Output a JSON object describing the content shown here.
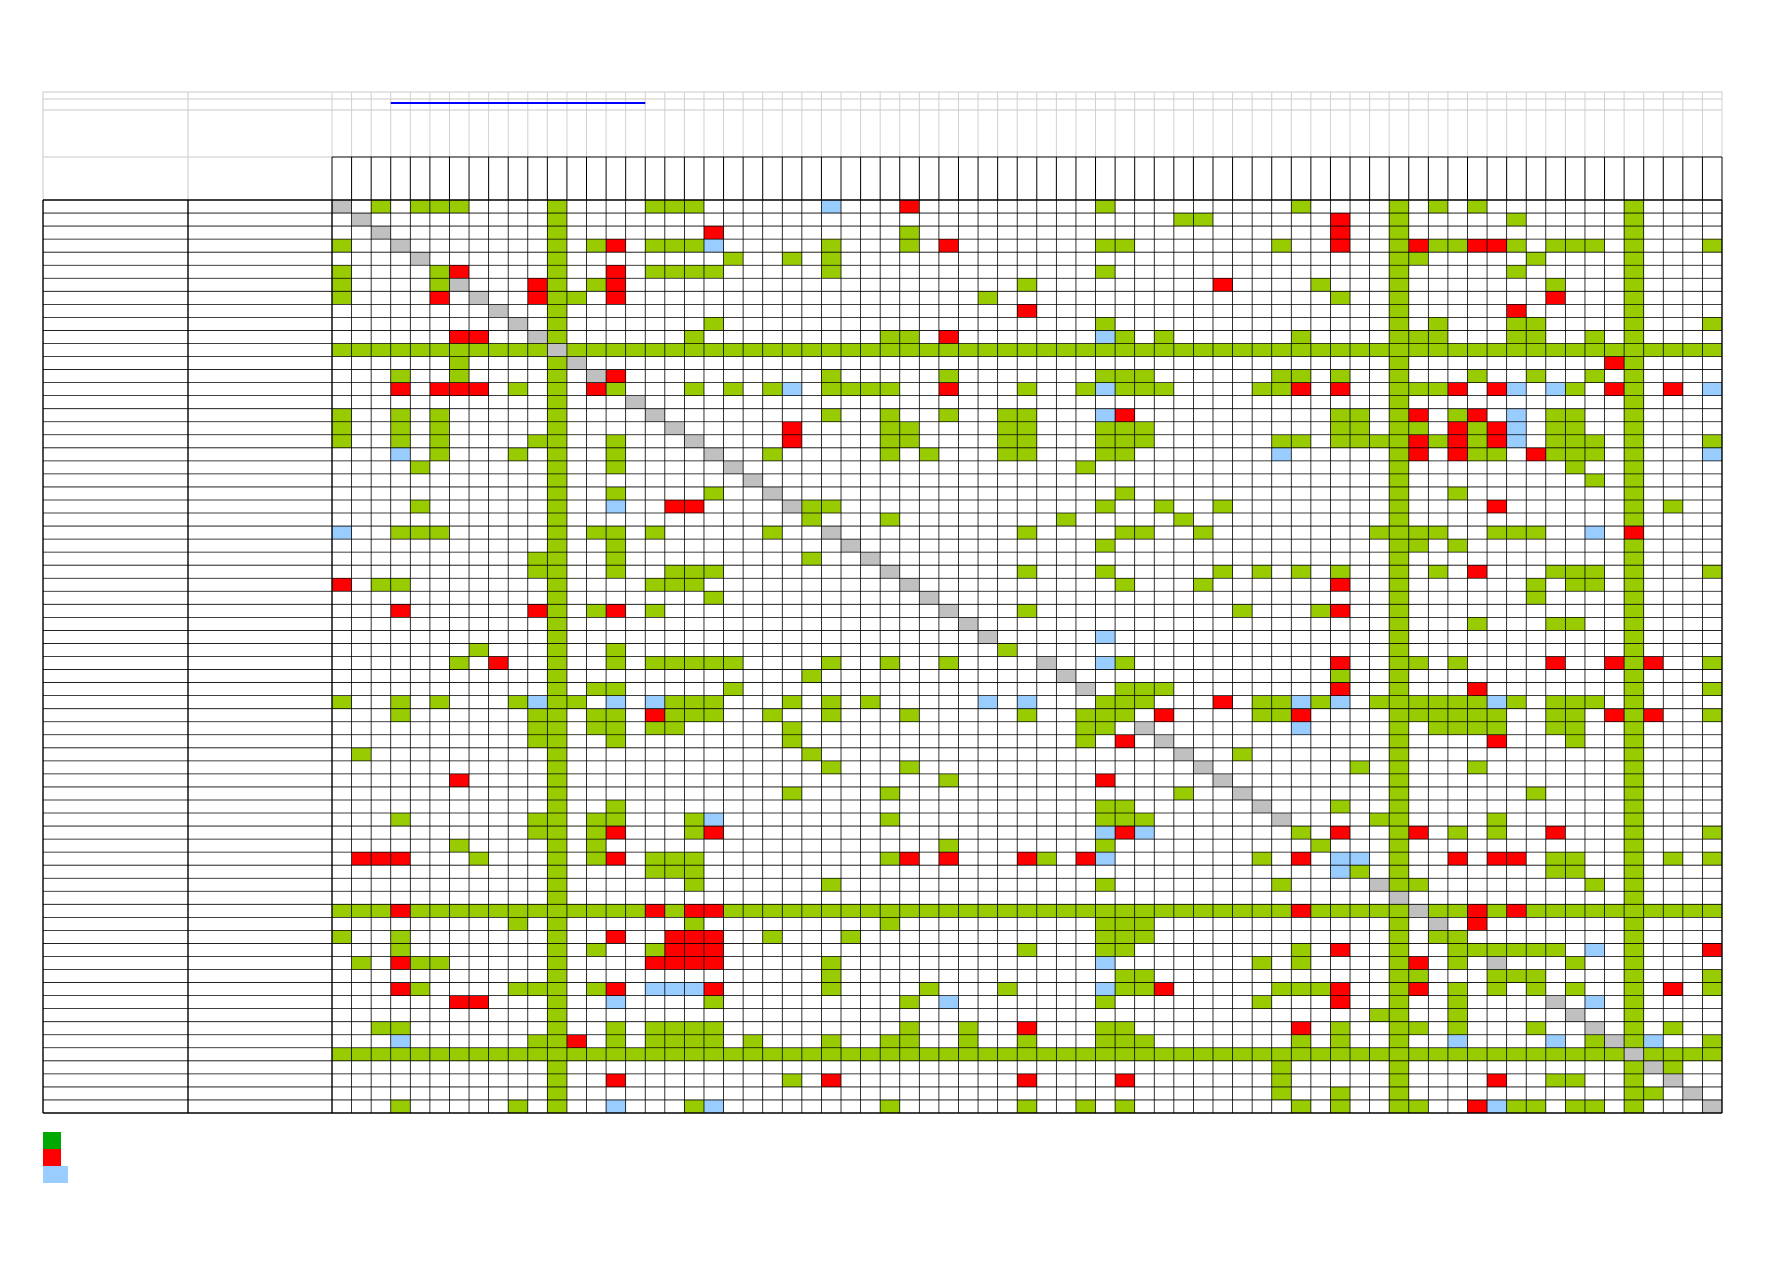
{
  "sheet": {
    "title": "",
    "row_labels": [],
    "column_labels": []
  },
  "colors": {
    "green": "#99cc00",
    "red": "#ff0000",
    "blue": "#99ccff",
    "gray": "#c0c0c0",
    "legend_green": "#00a800",
    "header_line": "#0000ff"
  },
  "legend": [
    {
      "color": "#00a800",
      "label": ""
    },
    {
      "color": "#ff0000",
      "label": ""
    },
    {
      "color": "#99ccff",
      "label": ""
    }
  ],
  "matrix": {
    "rows": 70,
    "cols": 71,
    "fill_columns": [
      11,
      54,
      66
    ],
    "fill_rows": [
      11,
      54,
      65
    ],
    "cells": {
      "0": {
        "2": "g",
        "4": "g",
        "5": "g",
        "6": "g",
        "16": "g",
        "17": "g",
        "18": "g",
        "25": "b",
        "29": "r",
        "39": "g",
        "66": "g",
        "58": "g",
        "49": "g",
        "56": "g"
      },
      "1": {
        "43": "g",
        "51": "r",
        "60": "g",
        "44": "g"
      },
      "2": {
        "19": "r",
        "29": "g",
        "51": "r"
      },
      "3": {
        "0": "g",
        "13": "g",
        "14": "r",
        "16": "g",
        "17": "g",
        "18": "g",
        "19": "b",
        "25": "g",
        "29": "g",
        "31": "r",
        "39": "g",
        "40": "g",
        "48": "g",
        "51": "r",
        "55": "r",
        "56": "g",
        "57": "g",
        "58": "r",
        "59": "r",
        "60": "g",
        "62": "g",
        "63": "g",
        "64": "g",
        "70": "g"
      },
      "4": {
        "20": "g",
        "23": "g",
        "25": "g",
        "55": "g",
        "61": "g"
      },
      "5": {
        "0": "g",
        "6": "r",
        "5": "g",
        "14": "r",
        "16": "g",
        "17": "g",
        "18": "g",
        "19": "g",
        "25": "g",
        "39": "g",
        "60": "g"
      },
      "6": {
        "0": "g",
        "5": "g",
        "10": "r",
        "13": "g",
        "14": "r",
        "35": "g",
        "45": "r",
        "50": "g",
        "62": "g"
      },
      "7": {
        "0": "g",
        "5": "r",
        "10": "r",
        "12": "g",
        "14": "r",
        "33": "g",
        "51": "g",
        "62": "r"
      },
      "8": {
        "35": "r",
        "60": "r"
      },
      "9": {
        "19": "g",
        "39": "g",
        "56": "g",
        "60": "g",
        "61": "g",
        "70": "g"
      },
      "10": {
        "6": "r",
        "7": "r",
        "18": "g",
        "28": "g",
        "29": "g",
        "31": "r",
        "39": "b",
        "40": "g",
        "42": "g",
        "49": "g",
        "55": "g",
        "56": "g",
        "60": "g",
        "61": "g",
        "64": "g"
      },
      "12": {
        "6": "g",
        "65": "r"
      },
      "13": {
        "3": "g",
        "6": "g",
        "14": "r",
        "25": "g",
        "31": "g",
        "39": "g",
        "40": "g",
        "41": "g",
        "48": "g",
        "49": "g",
        "51": "g",
        "58": "g",
        "61": "g",
        "64": "g"
      },
      "14": {
        "3": "r",
        "5": "r",
        "6": "r",
        "7": "r",
        "9": "g",
        "13": "r",
        "14": "g",
        "18": "g",
        "20": "g",
        "22": "g",
        "23": "b",
        "25": "g",
        "26": "g",
        "27": "g",
        "28": "g",
        "31": "r",
        "35": "g",
        "38": "g",
        "39": "b",
        "40": "g",
        "41": "g",
        "42": "g",
        "47": "g",
        "48": "g",
        "49": "r",
        "51": "r",
        "55": "g",
        "56": "g",
        "57": "r",
        "59": "r",
        "60": "b",
        "62": "b",
        "63": "g",
        "65": "r",
        "66": "g",
        "68": "r",
        "70": "b"
      },
      "16": {
        "0": "g",
        "3": "g",
        "5": "g",
        "25": "g",
        "28": "g",
        "31": "g",
        "34": "g",
        "35": "g",
        "39": "b",
        "40": "r",
        "51": "g",
        "52": "g",
        "55": "r",
        "57": "g",
        "58": "r",
        "60": "b",
        "62": "g",
        "63": "g"
      },
      "17": {
        "0": "g",
        "3": "g",
        "5": "g",
        "23": "r",
        "28": "g",
        "29": "g",
        "34": "g",
        "35": "g",
        "39": "g",
        "40": "g",
        "41": "g",
        "51": "g",
        "52": "g",
        "55": "g",
        "57": "r",
        "58": "g",
        "59": "r",
        "60": "b",
        "62": "g",
        "63": "g"
      },
      "18": {
        "0": "g",
        "3": "g",
        "5": "g",
        "10": "g",
        "14": "g",
        "23": "r",
        "28": "g",
        "29": "g",
        "34": "g",
        "35": "g",
        "39": "g",
        "40": "g",
        "41": "g",
        "48": "g",
        "49": "g",
        "51": "g",
        "52": "g",
        "53": "g",
        "55": "r",
        "56": "g",
        "57": "r",
        "58": "g",
        "59": "r",
        "60": "b",
        "62": "g",
        "63": "g",
        "64": "g",
        "70": "g"
      },
      "19": {
        "3": "b",
        "5": "g",
        "9": "g",
        "14": "g",
        "22": "g",
        "28": "g",
        "30": "g",
        "34": "g",
        "35": "g",
        "39": "g",
        "40": "g",
        "48": "b",
        "55": "r",
        "57": "r",
        "58": "g",
        "59": "g",
        "61": "r",
        "62": "g",
        "63": "g",
        "64": "g",
        "70": "b"
      },
      "20": {
        "4": "g",
        "14": "g",
        "38": "g",
        "63": "g"
      },
      "21": {
        "64": "g"
      },
      "22": {
        "14": "g",
        "19": "g",
        "40": "g",
        "57": "g"
      },
      "23": {
        "4": "g",
        "14": "b",
        "17": "r",
        "18": "r",
        "24": "g",
        "25": "g",
        "39": "g",
        "42": "g",
        "45": "g",
        "59": "r",
        "68": "g"
      },
      "24": {
        "24": "g",
        "28": "g",
        "37": "g",
        "43": "g",
        "54": "g"
      },
      "25": {
        "0": "b",
        "3": "g",
        "4": "g",
        "5": "g",
        "13": "g",
        "14": "g",
        "16": "g",
        "22": "g",
        "35": "g",
        "40": "g",
        "41": "g",
        "44": "g",
        "53": "g",
        "55": "g",
        "56": "g",
        "59": "g",
        "60": "g",
        "61": "g",
        "64": "b",
        "66": "r"
      },
      "26": {
        "14": "g",
        "39": "g",
        "55": "g",
        "57": "g"
      },
      "27": {
        "10": "g",
        "14": "g",
        "24": "g"
      },
      "28": {
        "10": "g",
        "14": "g",
        "17": "g",
        "18": "g",
        "19": "g",
        "35": "g",
        "39": "g",
        "45": "g",
        "47": "g",
        "49": "g",
        "51": "g",
        "56": "g",
        "58": "r",
        "62": "g",
        "63": "g",
        "64": "g",
        "70": "g"
      },
      "29": {
        "0": "r",
        "2": "g",
        "3": "g",
        "16": "g",
        "17": "g",
        "18": "g",
        "40": "g",
        "44": "g",
        "51": "r",
        "61": "g",
        "63": "g",
        "64": "g"
      },
      "30": {
        "19": "g",
        "61": "g"
      },
      "31": {
        "3": "r",
        "10": "r",
        "13": "g",
        "14": "r",
        "16": "g",
        "35": "g",
        "46": "g",
        "50": "g",
        "51": "r"
      },
      "32": {
        "58": "g",
        "62": "g",
        "63": "g"
      },
      "33": {
        "39": "b"
      },
      "34": {
        "7": "g",
        "14": "g",
        "34": "g"
      },
      "35": {
        "6": "g",
        "8": "r",
        "14": "g",
        "16": "g",
        "17": "g",
        "18": "g",
        "19": "g",
        "20": "g",
        "25": "g",
        "28": "g",
        "31": "g",
        "39": "b",
        "40": "g",
        "51": "r",
        "55": "g",
        "57": "g",
        "62": "r",
        "65": "r",
        "67": "r",
        "70": "g"
      },
      "36": {
        "24": "g",
        "51": "g"
      },
      "37": {
        "13": "g",
        "14": "g",
        "20": "g",
        "40": "g",
        "41": "g",
        "42": "g",
        "51": "r",
        "58": "r",
        "70": "g"
      },
      "38": {
        "0": "g",
        "3": "g",
        "5": "g",
        "9": "g",
        "10": "b",
        "12": "g",
        "14": "b",
        "16": "b",
        "17": "g",
        "18": "g",
        "19": "g",
        "23": "g",
        "25": "g",
        "27": "g",
        "33": "b",
        "35": "b",
        "39": "g",
        "40": "g",
        "41": "g",
        "45": "r",
        "47": "g",
        "48": "g",
        "49": "b",
        "50": "g",
        "51": "b",
        "53": "g",
        "55": "g",
        "56": "g",
        "57": "g",
        "58": "g",
        "59": "b",
        "60": "g",
        "62": "g",
        "63": "g",
        "64": "g"
      },
      "39": {
        "3": "g",
        "10": "g",
        "13": "g",
        "14": "g",
        "16": "r",
        "17": "g",
        "18": "g",
        "19": "g",
        "22": "g",
        "25": "g",
        "29": "g",
        "35": "g",
        "38": "g",
        "39": "g",
        "40": "g",
        "42": "r",
        "47": "g",
        "48": "g",
        "49": "r",
        "55": "g",
        "56": "g",
        "57": "g",
        "58": "g",
        "59": "g",
        "62": "g",
        "63": "g",
        "65": "r",
        "67": "r",
        "70": "g"
      },
      "40": {
        "10": "g",
        "13": "g",
        "14": "g",
        "16": "g",
        "17": "g",
        "23": "g",
        "38": "g",
        "39": "g",
        "49": "b",
        "56": "g",
        "57": "g",
        "58": "g",
        "59": "g",
        "62": "g",
        "63": "g"
      },
      "41": {
        "10": "g",
        "14": "g",
        "23": "g",
        "38": "g",
        "40": "r",
        "59": "r",
        "63": "g"
      },
      "42": {
        "1": "g",
        "24": "g",
        "46": "g"
      },
      "43": {
        "25": "g",
        "29": "g",
        "52": "g",
        "58": "g"
      },
      "44": {
        "6": "r",
        "31": "g",
        "39": "r"
      },
      "45": {
        "23": "g",
        "28": "g",
        "43": "g",
        "61": "g",
        "66": "g"
      },
      "46": {
        "14": "g",
        "39": "g",
        "40": "g",
        "51": "g"
      },
      "47": {
        "3": "g",
        "10": "g",
        "14": "g",
        "13": "g",
        "19": "b",
        "18": "g",
        "28": "g",
        "39": "g",
        "40": "g",
        "41": "g",
        "53": "g",
        "54": "g",
        "59": "g"
      },
      "48": {
        "10": "g",
        "13": "g",
        "14": "r",
        "18": "g",
        "19": "r",
        "39": "b",
        "40": "r",
        "41": "b",
        "49": "g",
        "51": "r",
        "55": "r",
        "57": "g",
        "59": "g",
        "62": "r",
        "70": "g"
      },
      "49": {
        "6": "g",
        "13": "g",
        "31": "g",
        "39": "g",
        "50": "g"
      },
      "50": {
        "1": "r",
        "2": "r",
        "3": "r",
        "7": "g",
        "13": "g",
        "14": "r",
        "16": "g",
        "17": "g",
        "18": "g",
        "28": "g",
        "29": "r",
        "31": "r",
        "35": "r",
        "36": "g",
        "38": "r",
        "39": "b",
        "47": "g",
        "49": "r",
        "51": "b",
        "52": "b",
        "57": "r",
        "59": "r",
        "60": "r",
        "62": "g",
        "63": "g",
        "68": "g",
        "70": "g"
      },
      "51": {
        "16": "g",
        "17": "g",
        "18": "g",
        "51": "b",
        "52": "g",
        "62": "g",
        "63": "g"
      },
      "52": {
        "18": "g",
        "25": "g",
        "39": "g",
        "48": "g",
        "54": "g",
        "55": "g",
        "64": "g"
      },
      "54": {
        "3": "r",
        "4": "g",
        "9": "g",
        "13": "g",
        "16": "r",
        "18": "r",
        "19": "r",
        "25": "g",
        "26": "g",
        "35": "g",
        "39": "g",
        "40": "g",
        "49": "r",
        "58": "r",
        "60": "r",
        "61": "g",
        "70": "g"
      },
      "55": {
        "9": "g",
        "18": "g",
        "28": "g",
        "39": "g",
        "40": "g",
        "41": "g",
        "58": "r"
      },
      "56": {
        "0": "g",
        "3": "g",
        "14": "r",
        "17": "r",
        "18": "r",
        "19": "r",
        "22": "g",
        "26": "g",
        "39": "g",
        "40": "g",
        "41": "g",
        "56": "g",
        "57": "g"
      },
      "57": {
        "3": "g",
        "13": "g",
        "16": "g",
        "17": "r",
        "18": "r",
        "19": "r",
        "35": "g",
        "39": "g",
        "40": "g",
        "49": "g",
        "51": "r",
        "57": "g",
        "58": "g",
        "59": "g",
        "60": "g",
        "61": "g",
        "62": "g",
        "64": "b",
        "70": "r"
      },
      "58": {
        "1": "g",
        "3": "r",
        "4": "g",
        "5": "g",
        "16": "r",
        "17": "r",
        "18": "r",
        "19": "r",
        "25": "g",
        "39": "b",
        "47": "g",
        "49": "g",
        "55": "r",
        "57": "g",
        "63": "g"
      },
      "59": {
        "25": "g",
        "40": "g",
        "41": "g",
        "55": "g",
        "59": "g",
        "60": "g",
        "61": "g",
        "70": "g"
      },
      "60": {
        "3": "r",
        "4": "g",
        "9": "g",
        "10": "g",
        "13": "g",
        "14": "r",
        "16": "b",
        "17": "b",
        "18": "b",
        "19": "r",
        "25": "g",
        "30": "g",
        "34": "g",
        "39": "b",
        "40": "g",
        "41": "g",
        "42": "r",
        "48": "g",
        "49": "g",
        "50": "g",
        "51": "r",
        "55": "r",
        "57": "g",
        "59": "g",
        "61": "g",
        "63": "g",
        "68": "r",
        "70": "g"
      },
      "61": {
        "6": "r",
        "7": "r",
        "14": "b",
        "19": "g",
        "29": "g",
        "31": "b",
        "39": "g",
        "47": "g",
        "51": "r",
        "57": "g",
        "64": "b"
      },
      "62": {
        "53": "g",
        "57": "g"
      },
      "63": {
        "2": "g",
        "3": "g",
        "14": "g",
        "16": "g",
        "17": "g",
        "18": "g",
        "19": "g",
        "29": "g",
        "32": "g",
        "35": "r",
        "39": "g",
        "40": "g",
        "49": "r",
        "51": "g",
        "55": "g",
        "57": "g",
        "61": "g",
        "66": "g",
        "68": "g"
      },
      "64": {
        "3": "b",
        "10": "g",
        "11": "g",
        "12": "r",
        "14": "g",
        "16": "g",
        "17": "g",
        "18": "g",
        "19": "g",
        "21": "g",
        "25": "g",
        "28": "g",
        "29": "g",
        "32": "g",
        "35": "g",
        "39": "g",
        "40": "g",
        "41": "g",
        "49": "g",
        "51": "g",
        "57": "b",
        "62": "b",
        "64": "g",
        "67": "b",
        "70": "g"
      },
      "66": {
        "48": "g",
        "68": "g"
      },
      "67": {
        "14": "r",
        "23": "g",
        "25": "r",
        "35": "r",
        "40": "r",
        "48": "g",
        "59": "r",
        "62": "g",
        "63": "g"
      },
      "68": {
        "48": "g",
        "51": "g",
        "67": "g"
      },
      "69": {
        "3": "g",
        "9": "g",
        "14": "b",
        "18": "g",
        "19": "b",
        "28": "g",
        "35": "g",
        "38": "g",
        "40": "g",
        "49": "g",
        "51": "g",
        "55": "g",
        "58": "r",
        "59": "b",
        "60": "g",
        "61": "g",
        "63": "g",
        "64": "g"
      }
    }
  }
}
